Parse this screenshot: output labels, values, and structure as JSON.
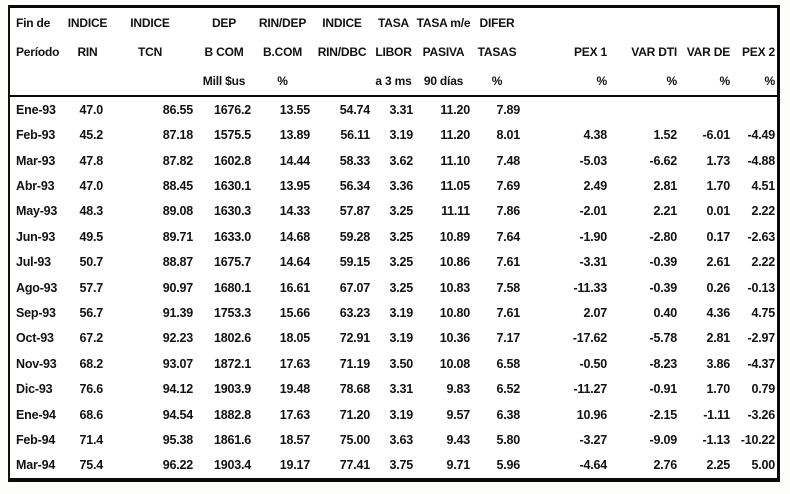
{
  "colors": {
    "ink": "#121212",
    "border": "#0a0a0a",
    "paper": "#ffffff"
  },
  "table": {
    "header_rows": [
      [
        "Fin de",
        "INDICE",
        "INDICE",
        "DEP",
        "RIN/DEP",
        "INDICE",
        "TASA",
        "TASA m/e",
        "DIFER",
        "",
        "",
        "",
        ""
      ],
      [
        "Período",
        "RIN",
        "TCN",
        "B COM",
        "B.COM",
        "RIN/DBC",
        "LIBOR",
        "PASIVA",
        "TASAS",
        "PEX 1",
        "VAR DTI",
        "VAR DE",
        "PEX 2"
      ],
      [
        "",
        "",
        "",
        "Mill $us",
        "%",
        "",
        "a 3 ms",
        "90 días",
        "%",
        "%",
        "%",
        "%",
        "%"
      ]
    ],
    "column_ids": [
      "fin-de-periodo",
      "indice-rin",
      "indice-tcn",
      "dep-b-com",
      "rin-dep-b-com",
      "indice-rin-dbc",
      "tasa-libor",
      "tasa-me-pasiva",
      "difer-tasas",
      "pex-1",
      "var-dti",
      "var-de",
      "pex-2"
    ],
    "rows": [
      [
        "Ene-93",
        "47.0",
        "86.55",
        "1676.2",
        "13.55",
        "54.74",
        "3.31",
        "11.20",
        "7.89",
        "",
        "",
        "",
        ""
      ],
      [
        "Feb-93",
        "45.2",
        "87.18",
        "1575.5",
        "13.89",
        "56.11",
        "3.19",
        "11.20",
        "8.01",
        "4.38",
        "1.52",
        "-6.01",
        "-4.49"
      ],
      [
        "Mar-93",
        "47.8",
        "87.82",
        "1602.8",
        "14.44",
        "58.33",
        "3.62",
        "11.10",
        "7.48",
        "-5.03",
        "-6.62",
        "1.73",
        "-4.88"
      ],
      [
        "Abr-93",
        "47.0",
        "88.45",
        "1630.1",
        "13.95",
        "56.34",
        "3.36",
        "11.05",
        "7.69",
        "2.49",
        "2.81",
        "1.70",
        "4.51"
      ],
      [
        "May-93",
        "48.3",
        "89.08",
        "1630.3",
        "14.33",
        "57.87",
        "3.25",
        "11.11",
        "7.86",
        "-2.01",
        "2.21",
        "0.01",
        "2.22"
      ],
      [
        "Jun-93",
        "49.5",
        "89.71",
        "1633.0",
        "14.68",
        "59.28",
        "3.25",
        "10.89",
        "7.64",
        "-1.90",
        "-2.80",
        "0.17",
        "-2.63"
      ],
      [
        "Jul-93",
        "50.7",
        "88.87",
        "1675.7",
        "14.64",
        "59.15",
        "3.25",
        "10.86",
        "7.61",
        "-3.31",
        "-0.39",
        "2.61",
        "2.22"
      ],
      [
        "Ago-93",
        "57.7",
        "90.97",
        "1680.1",
        "16.61",
        "67.07",
        "3.25",
        "10.83",
        "7.58",
        "-11.33",
        "-0.39",
        "0.26",
        "-0.13"
      ],
      [
        "Sep-93",
        "56.7",
        "91.39",
        "1753.3",
        "15.66",
        "63.23",
        "3.19",
        "10.80",
        "7.61",
        "2.07",
        "0.40",
        "4.36",
        "4.75"
      ],
      [
        "Oct-93",
        "67.2",
        "92.23",
        "1802.6",
        "18.05",
        "72.91",
        "3.19",
        "10.36",
        "7.17",
        "-17.62",
        "-5.78",
        "2.81",
        "-2.97"
      ],
      [
        "Nov-93",
        "68.2",
        "93.07",
        "1872.1",
        "17.63",
        "71.19",
        "3.50",
        "10.08",
        "6.58",
        "-0.50",
        "-8.23",
        "3.86",
        "-4.37"
      ],
      [
        "Dic-93",
        "76.6",
        "94.12",
        "1903.9",
        "19.48",
        "78.68",
        "3.31",
        "9.83",
        "6.52",
        "-11.27",
        "-0.91",
        "1.70",
        "0.79"
      ],
      [
        "Ene-94",
        "68.6",
        "94.54",
        "1882.8",
        "17.63",
        "71.20",
        "3.19",
        "9.57",
        "6.38",
        "10.96",
        "-2.15",
        "-1.11",
        "-3.26"
      ],
      [
        "Feb-94",
        "71.4",
        "95.38",
        "1861.6",
        "18.57",
        "75.00",
        "3.63",
        "9.43",
        "5.80",
        "-3.27",
        "-9.09",
        "-1.13",
        "-10.22"
      ],
      [
        "Mar-94",
        "75.4",
        "96.22",
        "1903.4",
        "19.17",
        "77.41",
        "3.75",
        "9.71",
        "5.96",
        "-4.64",
        "2.76",
        "2.25",
        "5.00"
      ]
    ]
  }
}
